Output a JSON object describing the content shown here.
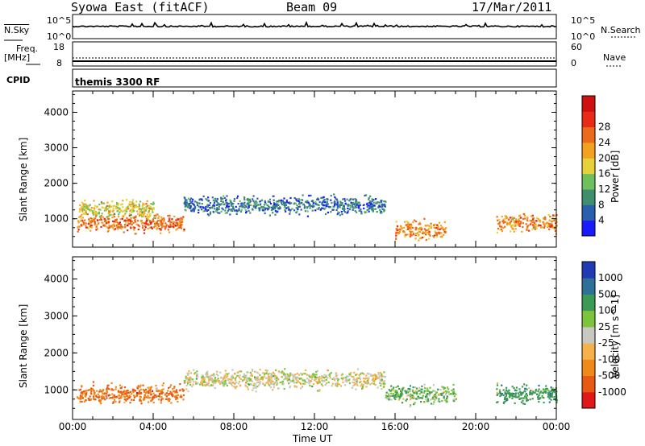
{
  "header": {
    "station": "Syowa East (fitACF)",
    "beam": "Beam 09",
    "date": "17/Mar/2011"
  },
  "strips": {
    "nsky_label": "N.Sky",
    "nsky_ticks": [
      "10^5",
      "10^0"
    ],
    "nsearch_label": "N.Search",
    "nsearch_ticks": [
      "10^5",
      "10^0"
    ],
    "freq_label_line1": "Freq.",
    "freq_label_line2": "[MHz]",
    "freq_ticks": [
      "18",
      "8"
    ],
    "nave_label": "Nave",
    "nave_ticks": [
      "60",
      "0"
    ],
    "cpid_label": "CPID",
    "cpid_value": "themis 3300 RF"
  },
  "chart_data": [
    {
      "type": "heatmap",
      "title": "",
      "xlabel": "Time UT",
      "ylabel": "Slant Range [km]",
      "x_ticks": [
        "00:00",
        "04:00",
        "08:00",
        "12:00",
        "16:00",
        "20:00",
        "00:00"
      ],
      "y_ticks": [
        "1000",
        "2000",
        "3000",
        "4000"
      ],
      "ylim": [
        200,
        4600
      ],
      "colorbar": {
        "label": "Power [dB]",
        "ticks": [
          "4",
          "8",
          "12",
          "16",
          "20",
          "24",
          "28"
        ],
        "colors": [
          "#1a1aff",
          "#2a5fb0",
          "#3f8f6f",
          "#6fc05a",
          "#e6d13a",
          "#f3a21f",
          "#ec6a1c",
          "#e82a16",
          "#cf1010"
        ]
      },
      "scatter_bands": [
        {
          "t_start": 0.2,
          "t_end": 5.5,
          "range_km": 900,
          "value": 26
        },
        {
          "t_start": 0.3,
          "t_end": 4.0,
          "range_km": 1300,
          "value": 18
        },
        {
          "t_start": 5.5,
          "t_end": 15.5,
          "range_km": 1400,
          "value": 8
        },
        {
          "t_start": 16.0,
          "t_end": 18.5,
          "range_km": 700,
          "value": 24
        },
        {
          "t_start": 21.0,
          "t_end": 24.0,
          "range_km": 900,
          "value": 24
        }
      ]
    },
    {
      "type": "heatmap",
      "title": "",
      "xlabel": "Time UT",
      "ylabel": "Slant Range [km]",
      "x_ticks": [
        "00:00",
        "04:00",
        "08:00",
        "12:00",
        "16:00",
        "20:00",
        "00:00"
      ],
      "y_ticks": [
        "1000",
        "2000",
        "3000",
        "4000"
      ],
      "ylim": [
        200,
        4600
      ],
      "colorbar": {
        "label": "Velocity [m s^-1]",
        "ticks": [
          "1000",
          "500",
          "100",
          "25",
          "-25",
          "-100",
          "-500",
          "-1000"
        ],
        "colors": [
          "#1f3bb3",
          "#2f6f9a",
          "#3d9a55",
          "#7cc43c",
          "#c8c8c0",
          "#f6b24a",
          "#ef8a18",
          "#e85a14",
          "#e01818"
        ]
      },
      "scatter_bands": [
        {
          "t_start": 0.2,
          "t_end": 5.5,
          "range_km": 900,
          "value": -500
        },
        {
          "t_start": 5.5,
          "t_end": 15.5,
          "range_km": 1300,
          "value": 0
        },
        {
          "t_start": 15.5,
          "t_end": 19.0,
          "range_km": 900,
          "value": 100
        },
        {
          "t_start": 21.0,
          "t_end": 24.0,
          "range_km": 900,
          "value": 300
        }
      ]
    }
  ]
}
